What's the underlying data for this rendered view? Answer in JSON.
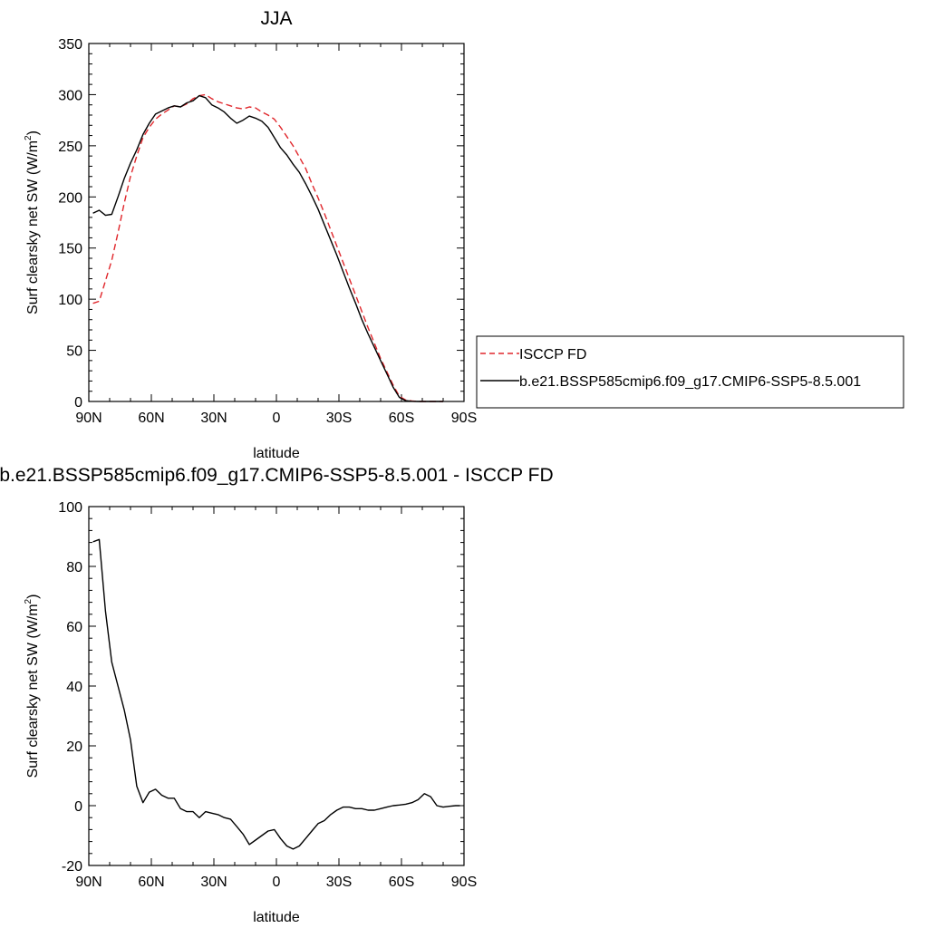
{
  "chart_data": [
    {
      "type": "line",
      "title": "JJA",
      "xlabel": "latitude",
      "ylabel": "Surf clearsky net SW (W/m",
      "ylabel_sup": "2",
      "ylabel_close": ")",
      "xlim": [
        90,
        -90
      ],
      "ylim": [
        0,
        350
      ],
      "x_ticks": [
        90,
        60,
        30,
        0,
        -30,
        -60,
        -90
      ],
      "x_tick_labels": [
        "90N",
        "60N",
        "30N",
        "0",
        "30S",
        "60S",
        "90S"
      ],
      "y_ticks": [
        0,
        50,
        100,
        150,
        200,
        250,
        300,
        350
      ],
      "y_tick_labels": [
        "0",
        "50",
        "100",
        "150",
        "200",
        "250",
        "300",
        "350"
      ],
      "legend_placement": "right",
      "series": [
        {
          "name": "ISCCP FD",
          "color": "#e0262b",
          "dash": "dashed",
          "x": [
            88,
            85,
            82,
            79,
            76,
            73,
            70,
            67,
            64,
            61,
            58,
            55,
            52,
            49,
            46,
            43,
            40,
            37,
            34,
            31,
            28,
            25,
            22,
            19,
            16,
            13,
            10,
            7,
            4,
            1,
            -2,
            -5,
            -8,
            -11,
            -14,
            -17,
            -20,
            -23,
            -26,
            -29,
            -32,
            -35,
            -38,
            -41,
            -44,
            -47,
            -50,
            -53,
            -56,
            -59,
            -62,
            -65,
            -68,
            -71,
            -74,
            -77,
            -80
          ],
          "values": [
            96,
            98,
            118,
            138,
            165,
            194,
            220,
            240,
            258,
            268,
            276,
            281,
            285,
            289,
            288,
            291,
            296,
            299,
            300,
            296,
            293,
            291,
            289,
            287,
            286,
            288,
            287,
            283,
            280,
            276,
            268,
            259,
            250,
            239,
            228,
            213,
            199,
            184,
            168,
            152,
            136,
            120,
            104,
            88,
            72,
            57,
            42,
            29,
            16,
            5,
            1.5,
            0.4,
            0,
            0,
            0,
            0,
            0
          ]
        },
        {
          "name": "b.e21.BSSP585cmip6.f09_g17.CMIP6-SSP5-8.5.001",
          "color": "#000000",
          "dash": "solid",
          "x": [
            88,
            85,
            82,
            79,
            76,
            73,
            70,
            67,
            64,
            61,
            58,
            55,
            52,
            49,
            46,
            43,
            40,
            37,
            34,
            31,
            28,
            25,
            22,
            19,
            16,
            13,
            10,
            7,
            4,
            1,
            -2,
            -5,
            -8,
            -11,
            -14,
            -17,
            -20,
            -23,
            -26,
            -29,
            -32,
            -35,
            -38,
            -41,
            -44,
            -47,
            -50,
            -53,
            -56,
            -59,
            -62,
            -65,
            -68,
            -71,
            -74,
            -77,
            -80
          ],
          "values": [
            184,
            187,
            182,
            183,
            200,
            218,
            233,
            246,
            261,
            272,
            281,
            284,
            287,
            289,
            288,
            292,
            294,
            299,
            297,
            290,
            287,
            283,
            277,
            272,
            275,
            279,
            277,
            274,
            268,
            258,
            248,
            241,
            232,
            224,
            213,
            201,
            188,
            173,
            158,
            143,
            127,
            111,
            96,
            80,
            66,
            53,
            40,
            27,
            14,
            4,
            0.8,
            0.2,
            0,
            0,
            0,
            0,
            0
          ]
        }
      ]
    },
    {
      "type": "line",
      "title": "b.e21.BSSP585cmip6.f09_g17.CMIP6-SSP5-8.5.001 - ISCCP FD",
      "xlabel": "latitude",
      "ylabel": "Surf clearsky net SW (W/m",
      "ylabel_sup": "2",
      "ylabel_close": ")",
      "xlim": [
        90,
        -90
      ],
      "ylim": [
        -20,
        100
      ],
      "x_ticks": [
        90,
        60,
        30,
        0,
        -30,
        -60,
        -90
      ],
      "x_tick_labels": [
        "90N",
        "60N",
        "30N",
        "0",
        "30S",
        "60S",
        "90S"
      ],
      "y_ticks": [
        -20,
        0,
        20,
        40,
        60,
        80,
        100
      ],
      "y_tick_labels": [
        "-20",
        "0",
        "20",
        "40",
        "60",
        "80",
        "100"
      ],
      "series": [
        {
          "color": "#000000",
          "dash": "solid",
          "x": [
            88,
            85,
            82,
            79,
            76,
            73,
            70,
            67,
            64,
            61,
            58,
            55,
            52,
            49,
            46,
            43,
            40,
            37,
            34,
            31,
            28,
            25,
            22,
            19,
            16,
            13,
            10,
            7,
            4,
            1,
            -2,
            -5,
            -8,
            -11,
            -14,
            -17,
            -20,
            -23,
            -26,
            -29,
            -32,
            -35,
            -38,
            -41,
            -44,
            -47,
            -50,
            -53,
            -56,
            -59,
            -62,
            -65,
            -68,
            -71,
            -74,
            -77,
            -80,
            -83,
            -86,
            -88
          ],
          "values": [
            88.2,
            89,
            65,
            48,
            40,
            32,
            22,
            6.5,
            1,
            4.5,
            5.5,
            3.5,
            2.5,
            2.5,
            -1,
            -2,
            -2,
            -4,
            -2,
            -2.5,
            -3,
            -4,
            -4.5,
            -7,
            -9.5,
            -13,
            -11.5,
            -10,
            -8.5,
            -8,
            -11,
            -13.5,
            -14.5,
            -13.5,
            -11,
            -8.5,
            -6,
            -5,
            -3,
            -1.5,
            -0.5,
            -0.5,
            -1,
            -1,
            -1.5,
            -1.5,
            -1,
            -0.5,
            0,
            0.2,
            0.5,
            1,
            2,
            4,
            3,
            0,
            -0.5,
            -0.2,
            0,
            0
          ]
        }
      ]
    }
  ]
}
